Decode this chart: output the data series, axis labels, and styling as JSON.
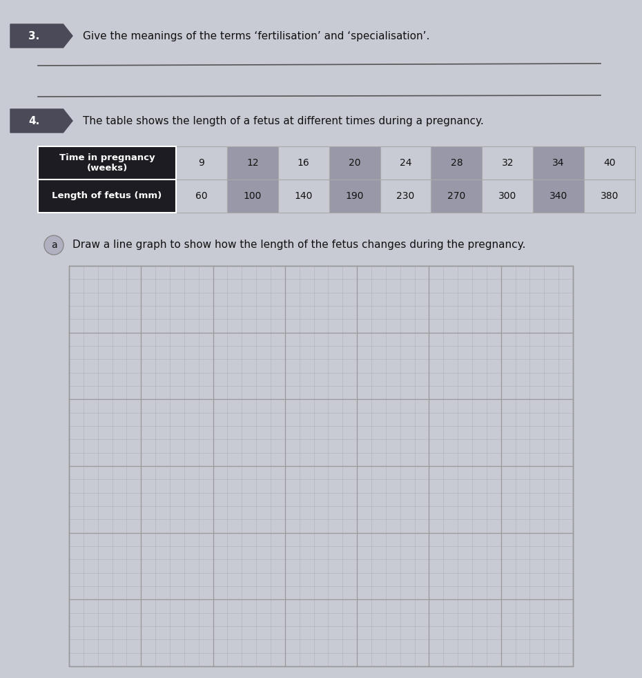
{
  "page_bg": "#c8cad4",
  "question3_number": "3.",
  "question3_text": "Give the meanings of the terms ‘fertilisation’ and ‘specialisation’.",
  "question4_number": "4.",
  "question4_text": "The table shows the length of a fetus at different times during a pregnancy.",
  "table_header_bg": "#1c1c22",
  "table_header_text_color": "#ffffff",
  "table_cell_bg_on": "#9898a8",
  "table_cell_bg_off": "#b8b8c8",
  "table_header1": "Time in pregnancy\n(weeks)",
  "table_header2": "Length of fetus (mm)",
  "time_weeks": [
    9,
    12,
    16,
    20,
    24,
    28,
    32,
    34,
    40
  ],
  "length_mm": [
    60,
    100,
    140,
    190,
    230,
    270,
    300,
    340,
    380
  ],
  "cell_has_bg": [
    false,
    true,
    false,
    true,
    false,
    true,
    false,
    true,
    false
  ],
  "sub_question_label": "a",
  "sub_question_text": "Draw a line graph to show how the length of the fetus changes during the pregnancy.",
  "grid_line_color": "#999999",
  "grid_subline_color": "#b0b0b8",
  "grid_bg": "#c8cad4",
  "arrow_bg": "#4a4a58",
  "line_color": "#555555"
}
